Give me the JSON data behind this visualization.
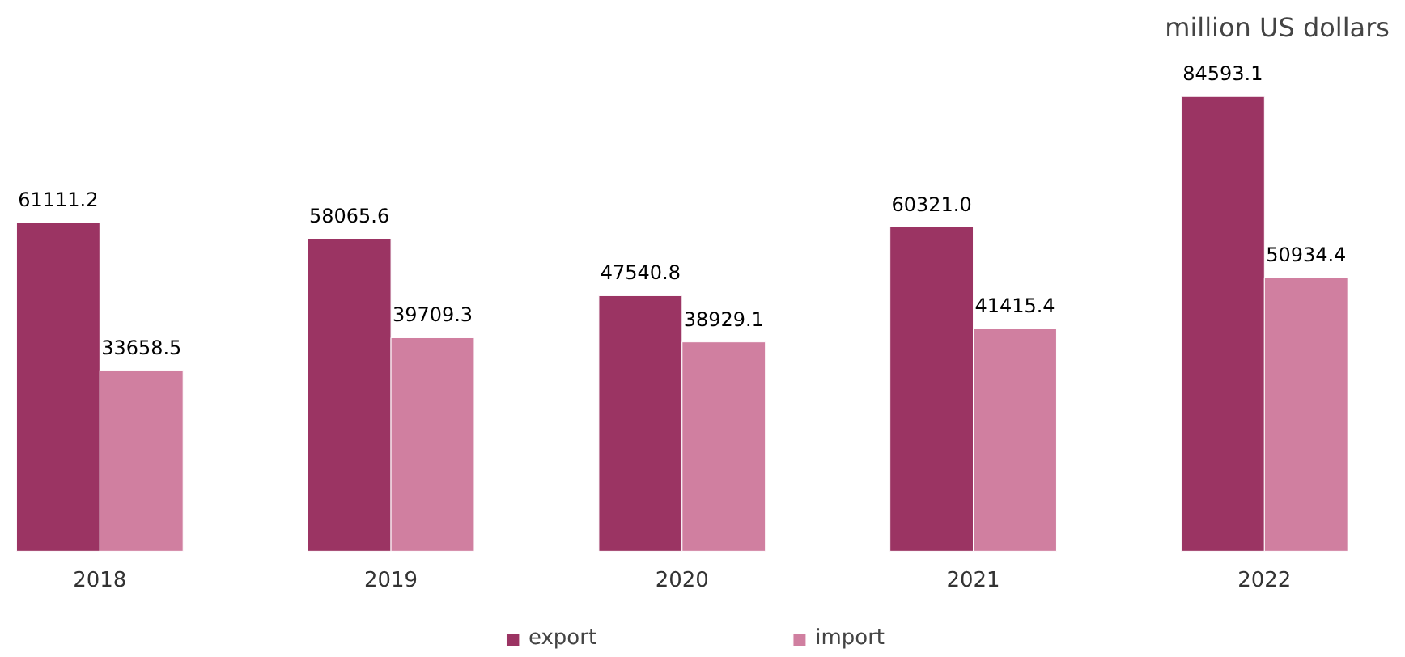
{
  "chart_data": {
    "type": "bar",
    "title": "million US dollars",
    "categories": [
      "2018",
      "2019",
      "2020",
      "2021",
      "2022"
    ],
    "series": [
      {
        "name": "export",
        "color": "#9b3463",
        "values": [
          61111.2,
          58065.6,
          47540.8,
          60321.0,
          84593.1
        ],
        "value_labels": [
          "61111.2",
          "58065.6",
          "47540.8",
          "60321.0",
          "84593.1"
        ]
      },
      {
        "name": "import",
        "color": "#d07fa0",
        "values": [
          33658.5,
          39709.3,
          38929.1,
          41415.4,
          50934.4
        ],
        "value_labels": [
          "33658.5",
          "39709.3",
          "38929.1",
          "41415.4",
          "50934.4"
        ]
      }
    ],
    "legend": "bottom",
    "grid": false
  }
}
